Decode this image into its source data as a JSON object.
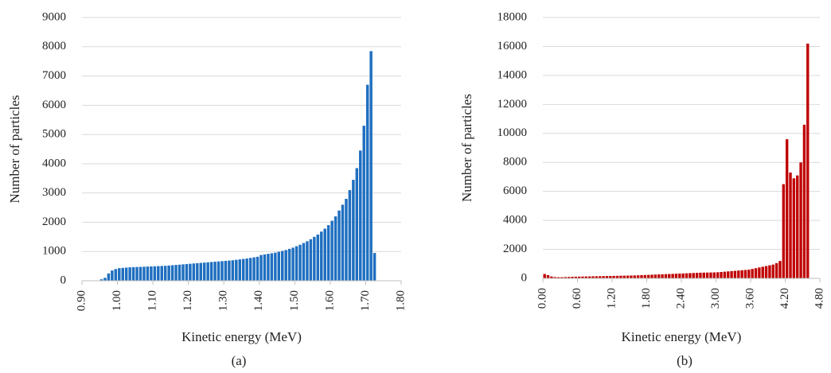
{
  "chart_data": [
    {
      "type": "histogram",
      "caption": "(a)",
      "x_label": "Kinetic energy (MeV)",
      "y_label": "Number of particles",
      "color": "#1f6fc0",
      "grid": true,
      "bins": [
        0.95,
        0.96,
        0.97,
        0.98,
        0.99,
        1,
        1.01,
        1.02,
        1.03,
        1.04,
        1.05,
        1.06,
        1.07,
        1.08,
        1.09,
        1.1,
        1.11,
        1.12,
        1.13,
        1.14,
        1.15,
        1.16,
        1.17,
        1.18,
        1.19,
        1.2,
        1.21,
        1.22,
        1.23,
        1.24,
        1.25,
        1.26,
        1.27,
        1.28,
        1.29,
        1.3,
        1.31,
        1.32,
        1.33,
        1.34,
        1.35,
        1.36,
        1.37,
        1.38,
        1.39,
        1.4,
        1.41,
        1.42,
        1.43,
        1.44,
        1.45,
        1.46,
        1.47,
        1.48,
        1.49,
        1.5,
        1.51,
        1.52,
        1.53,
        1.54,
        1.55,
        1.56,
        1.57,
        1.58,
        1.59,
        1.6,
        1.61,
        1.62,
        1.63,
        1.64,
        1.65,
        1.66,
        1.67,
        1.68,
        1.69,
        1.7,
        1.71,
        1.72,
        1.73
      ],
      "values": [
        50,
        100,
        250,
        350,
        400,
        430,
        440,
        450,
        460,
        465,
        470,
        475,
        480,
        485,
        490,
        495,
        500,
        505,
        510,
        520,
        530,
        540,
        550,
        560,
        570,
        580,
        590,
        600,
        610,
        620,
        630,
        640,
        650,
        660,
        670,
        680,
        690,
        700,
        715,
        730,
        745,
        760,
        780,
        800,
        820,
        880,
        900,
        920,
        940,
        960,
        990,
        1020,
        1050,
        1090,
        1130,
        1180,
        1230,
        1290,
        1350,
        1420,
        1500,
        1580,
        1680,
        1780,
        1900,
        2050,
        2200,
        2400,
        2600,
        2800,
        3100,
        3450,
        3850,
        4450,
        5300,
        6700,
        7850,
        950
      ],
      "xlim": [
        0.9,
        1.8
      ],
      "xticks": [
        {
          "value": 0.9,
          "label": "0.90"
        },
        {
          "value": 1.0,
          "label": "1.00"
        },
        {
          "value": 1.1,
          "label": "1.10"
        },
        {
          "value": 1.2,
          "label": "1.20"
        },
        {
          "value": 1.3,
          "label": "1.30"
        },
        {
          "value": 1.4,
          "label": "1.40"
        },
        {
          "value": 1.5,
          "label": "1.50"
        },
        {
          "value": 1.6,
          "label": "1.60"
        },
        {
          "value": 1.7,
          "label": "1.70"
        },
        {
          "value": 1.8,
          "label": "1.80"
        }
      ],
      "ylim": [
        0,
        9000
      ],
      "yticks": [
        0,
        1000,
        2000,
        3000,
        4000,
        5000,
        6000,
        7000,
        8000,
        9000
      ]
    },
    {
      "type": "histogram",
      "caption": "(b)",
      "x_label": "Kinetic energy (MeV)",
      "y_label": "Number of particles",
      "color": "#c00000",
      "grid": true,
      "bins": [
        0,
        0.06,
        0.12,
        0.18,
        0.24,
        0.3,
        0.36,
        0.42,
        0.48,
        0.54,
        0.6,
        0.66,
        0.72,
        0.78,
        0.84,
        0.9,
        0.96,
        1.02,
        1.08,
        1.14,
        1.2,
        1.26,
        1.32,
        1.38,
        1.44,
        1.5,
        1.56,
        1.62,
        1.68,
        1.74,
        1.8,
        1.86,
        1.92,
        1.98,
        2.04,
        2.1,
        2.16,
        2.22,
        2.28,
        2.34,
        2.4,
        2.46,
        2.52,
        2.58,
        2.64,
        2.7,
        2.76,
        2.82,
        2.88,
        2.94,
        3,
        3.06,
        3.12,
        3.18,
        3.24,
        3.3,
        3.36,
        3.42,
        3.48,
        3.54,
        3.6,
        3.66,
        3.72,
        3.78,
        3.84,
        3.9,
        3.96,
        4.02,
        4.08,
        4.14,
        4.2,
        4.26,
        4.32,
        4.38,
        4.44,
        4.5,
        4.56,
        4.62
      ],
      "values": [
        300,
        220,
        130,
        90,
        80,
        80,
        90,
        100,
        110,
        115,
        120,
        125,
        130,
        135,
        140,
        145,
        150,
        155,
        160,
        165,
        170,
        175,
        180,
        185,
        190,
        195,
        200,
        210,
        220,
        230,
        240,
        250,
        260,
        270,
        280,
        290,
        300,
        310,
        320,
        330,
        340,
        350,
        360,
        370,
        380,
        390,
        395,
        400,
        405,
        410,
        420,
        440,
        460,
        480,
        500,
        520,
        540,
        560,
        580,
        600,
        650,
        700,
        750,
        800,
        850,
        900,
        950,
        1050,
        1200,
        6500,
        9600,
        7300,
        6900,
        7100,
        8000,
        10600,
        16200
      ],
      "xlim": [
        0,
        4.8
      ],
      "xticks": [
        {
          "value": 0,
          "label": "0.00"
        },
        {
          "value": 0.6,
          "label": "0.60"
        },
        {
          "value": 1.2,
          "label": "1.20"
        },
        {
          "value": 1.8,
          "label": "1.80"
        },
        {
          "value": 2.4,
          "label": "2.40"
        },
        {
          "value": 3.0,
          "label": "3.00"
        },
        {
          "value": 3.6,
          "label": "3.60"
        },
        {
          "value": 4.2,
          "label": "4.20"
        },
        {
          "value": 4.8,
          "label": "4.80"
        }
      ],
      "ylim": [
        0,
        18000
      ],
      "yticks": [
        0,
        2000,
        4000,
        6000,
        8000,
        10000,
        12000,
        14000,
        16000,
        18000
      ]
    }
  ]
}
